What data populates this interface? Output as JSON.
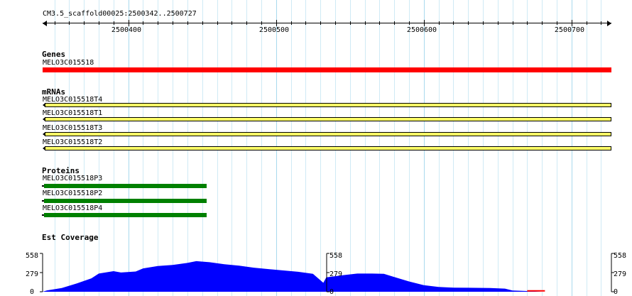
{
  "ruler": {
    "title": "CM3.5_scaffold00025:2500342..2500727",
    "start": 2500342,
    "end": 2500727,
    "ticks": [
      "2500400",
      "2500500",
      "2500600",
      "2500700"
    ]
  },
  "tracks": {
    "genes": {
      "title": "Genes",
      "features": [
        {
          "label": "MELO3C015518",
          "color": "#ff0000"
        }
      ]
    },
    "mrnas": {
      "title": "mRNAs",
      "features": [
        {
          "label": "MELO3C015518T4"
        },
        {
          "label": "MELO3C015518T1"
        },
        {
          "label": "MELO3C015518T3"
        },
        {
          "label": "MELO3C015518T2"
        }
      ],
      "color": "#ffff66"
    },
    "proteins": {
      "title": "Proteins",
      "features": [
        {
          "label": "MELO3C015518P3"
        },
        {
          "label": "MELO3C015518P2"
        },
        {
          "label": "MELO3C015518P4"
        }
      ],
      "color": "#008000"
    },
    "coverage": {
      "title": "Est Coverage",
      "axis_labels": [
        "558",
        "279",
        "0"
      ],
      "max": 558,
      "color": "#0000ff",
      "profile": [
        [
          2500342,
          0
        ],
        [
          2500345,
          20
        ],
        [
          2500355,
          55
        ],
        [
          2500365,
          120
        ],
        [
          2500375,
          195
        ],
        [
          2500380,
          265
        ],
        [
          2500390,
          300
        ],
        [
          2500395,
          280
        ],
        [
          2500405,
          295
        ],
        [
          2500410,
          340
        ],
        [
          2500420,
          375
        ],
        [
          2500430,
          390
        ],
        [
          2500440,
          420
        ],
        [
          2500446,
          445
        ],
        [
          2500455,
          430
        ],
        [
          2500465,
          400
        ],
        [
          2500475,
          380
        ],
        [
          2500485,
          350
        ],
        [
          2500495,
          330
        ],
        [
          2500505,
          310
        ],
        [
          2500515,
          290
        ],
        [
          2500525,
          260
        ],
        [
          2500532,
          130
        ],
        [
          2500534,
          210
        ],
        [
          2500545,
          240
        ],
        [
          2500555,
          265
        ],
        [
          2500565,
          265
        ],
        [
          2500573,
          260
        ],
        [
          2500580,
          215
        ],
        [
          2500590,
          150
        ],
        [
          2500600,
          95
        ],
        [
          2500610,
          70
        ],
        [
          2500620,
          60
        ],
        [
          2500630,
          58
        ],
        [
          2500645,
          55
        ],
        [
          2500655,
          45
        ],
        [
          2500660,
          18
        ],
        [
          2500670,
          10
        ],
        [
          2500680,
          0
        ]
      ],
      "tail_color": "#ff0000",
      "tail": [
        [
          2500670,
          12
        ],
        [
          2500682,
          12
        ]
      ]
    }
  }
}
